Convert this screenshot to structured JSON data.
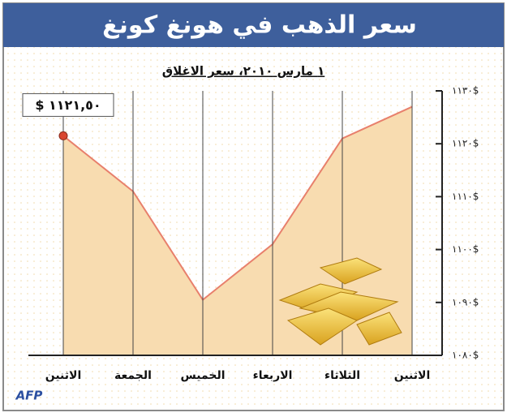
{
  "chart_data": {
    "type": "area",
    "title": "سعر الذهب في هونغ كونغ",
    "subtitle": "١ مارس ٢٠١٠، سعر الاغلاق",
    "categories": [
      "الاثنين",
      "الجمعة",
      "الخميس",
      "الاربعاء",
      "الثلاثاء",
      "الاثنين"
    ],
    "values": [
      1121.5,
      1111,
      1090.5,
      1101,
      1121,
      1127
    ],
    "value_labels": [
      "$ ١١٢١,٥٠",
      null,
      null,
      null,
      null,
      null
    ],
    "line_color": "#e8806c",
    "fill_color": "#f8dcb0",
    "marker_color": "#d9452e",
    "ylim": [
      1080,
      1130
    ],
    "yticks": [
      {
        "value": 1080,
        "label": "١٠٨٠$"
      },
      {
        "value": 1090,
        "label": "١٠٩٠$"
      },
      {
        "value": 1100,
        "label": "١١٠٠$"
      },
      {
        "value": 1110,
        "label": "١١١٠$"
      },
      {
        "value": 1120,
        "label": "١١٢٠$"
      },
      {
        "value": 1130,
        "label": "١١٣٠$"
      }
    ],
    "y_axis_side": "right",
    "grid": true,
    "source": "AFP"
  }
}
